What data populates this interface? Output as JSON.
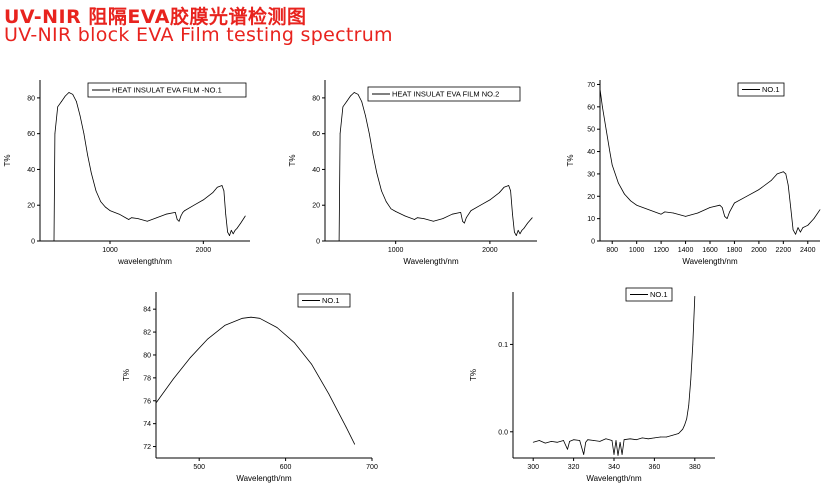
{
  "header": {
    "title_cn": "UV-NIR 阻隔EVA胶膜光谱检测图",
    "title_en": "UV-NIR block EVA Film testing spectrum"
  },
  "colors": {
    "title": "#e8231e",
    "line": "#000000"
  },
  "chart_data": [
    {
      "type": "line",
      "xlabel": "wavelength/nm",
      "ylabel": "T%",
      "xlim": [
        250,
        2500
      ],
      "ylim": [
        0,
        90
      ],
      "xticks": [
        1000,
        2000
      ],
      "yticks": [
        0,
        20,
        40,
        60,
        80
      ],
      "legend_placement": "top-right",
      "series": [
        {
          "name": "HEAT INSULAT EVA FILM -NO.1",
          "x": [
            400,
            410,
            440,
            480,
            520,
            560,
            600,
            640,
            680,
            720,
            760,
            800,
            850,
            900,
            950,
            1000,
            1100,
            1200,
            1230,
            1300,
            1400,
            1500,
            1600,
            1700,
            1720,
            1740,
            1760,
            1780,
            1800,
            1900,
            2000,
            2100,
            2150,
            2200,
            2220,
            2240,
            2260,
            2280,
            2300,
            2320,
            2340,
            2360,
            2400,
            2450
          ],
          "values": [
            0,
            60,
            75,
            78,
            81,
            83,
            82,
            78,
            70,
            60,
            48,
            38,
            28,
            22,
            19,
            17,
            15,
            12,
            13,
            12.5,
            11,
            13,
            15,
            16,
            12,
            11,
            14,
            16,
            17,
            20,
            23,
            27,
            30,
            31,
            28,
            15,
            5,
            3,
            6,
            4,
            6,
            7,
            10,
            14
          ]
        }
      ]
    },
    {
      "type": "line",
      "xlabel": "Wavelength/nm",
      "ylabel": "T%",
      "xlim": [
        250,
        2500
      ],
      "ylim": [
        0,
        90
      ],
      "xticks": [
        1000,
        2000
      ],
      "yticks": [
        0,
        20,
        40,
        60,
        80
      ],
      "legend_placement": "top-right",
      "series": [
        {
          "name": "HEAT INSULAT EVA FILM NO.2",
          "x": [
            400,
            410,
            440,
            480,
            520,
            560,
            600,
            640,
            680,
            720,
            760,
            800,
            850,
            900,
            950,
            1000,
            1100,
            1200,
            1230,
            1300,
            1400,
            1500,
            1600,
            1690,
            1710,
            1730,
            1750,
            1800,
            1900,
            2000,
            2100,
            2150,
            2200,
            2220,
            2240,
            2260,
            2280,
            2300,
            2320,
            2340,
            2360,
            2400,
            2450
          ],
          "values": [
            0,
            60,
            75,
            78,
            81,
            83,
            82,
            78,
            70,
            60,
            48,
            38,
            28,
            22,
            18,
            16.5,
            14,
            12,
            13,
            12.5,
            11,
            12.5,
            15,
            16,
            11,
            10,
            13,
            17,
            20,
            23,
            27,
            30,
            31,
            28,
            15,
            5,
            3,
            6,
            4,
            6,
            7,
            10,
            13
          ]
        }
      ]
    },
    {
      "type": "line",
      "xlabel": "Wavelength/nm",
      "ylabel": "T%",
      "xlim": [
        700,
        2500
      ],
      "ylim": [
        0,
        72
      ],
      "xticks": [
        800,
        1000,
        1200,
        1400,
        1600,
        1800,
        2000,
        2200,
        2400
      ],
      "yticks": [
        0,
        10,
        20,
        30,
        40,
        50,
        60,
        70
      ],
      "legend_placement": "top-right",
      "series": [
        {
          "name": "NO.1",
          "x": [
            700,
            720,
            750,
            780,
            800,
            850,
            900,
            950,
            1000,
            1100,
            1200,
            1230,
            1300,
            1400,
            1500,
            1600,
            1680,
            1700,
            1720,
            1740,
            1760,
            1800,
            1900,
            2000,
            2100,
            2150,
            2200,
            2220,
            2240,
            2260,
            2280,
            2300,
            2320,
            2340,
            2360,
            2400,
            2450,
            2500
          ],
          "values": [
            68,
            60,
            50,
            40,
            34,
            26,
            21,
            18,
            16,
            14,
            12,
            13,
            12.5,
            11,
            12.5,
            15,
            16,
            15,
            11,
            10,
            13,
            17,
            20,
            23,
            27,
            30,
            31,
            30,
            25,
            15,
            5,
            3,
            6,
            4,
            6,
            7,
            10,
            14
          ]
        }
      ]
    },
    {
      "type": "line",
      "xlabel": "Wavelength/nm",
      "ylabel": "T%",
      "xlim": [
        450,
        700
      ],
      "ylim": [
        71,
        85.5
      ],
      "xticks": [
        500,
        600,
        700
      ],
      "yticks": [
        72,
        74,
        76,
        78,
        80,
        82,
        84
      ],
      "legend_placement": "top-center",
      "series": [
        {
          "name": "NO.1",
          "x": [
            450,
            470,
            490,
            510,
            530,
            550,
            560,
            570,
            590,
            610,
            630,
            650,
            670,
            680
          ],
          "values": [
            75.8,
            77.9,
            79.8,
            81.4,
            82.6,
            83.2,
            83.3,
            83.2,
            82.4,
            81.1,
            79.2,
            76.6,
            73.7,
            72.2
          ]
        }
      ]
    },
    {
      "type": "line",
      "xlabel": "Wavelength/nm",
      "ylabel": "T%",
      "xlim": [
        290,
        390
      ],
      "ylim": [
        -0.03,
        0.16
      ],
      "xticks": [
        300,
        320,
        340,
        360,
        380
      ],
      "yticks": [
        0.0,
        0.1
      ],
      "ytick_labels": [
        "0.0",
        "0.1"
      ],
      "legend_placement": "top-left",
      "series": [
        {
          "name": "NO.1",
          "x": [
            300,
            303,
            306,
            309,
            312,
            315,
            317,
            318,
            320,
            323,
            325,
            326,
            327,
            330,
            333,
            336,
            339,
            340,
            341,
            342,
            343,
            344,
            345,
            348,
            351,
            354,
            357,
            360,
            363,
            366,
            369,
            372,
            374,
            375,
            376,
            377,
            378,
            379,
            380
          ],
          "values": [
            -0.012,
            -0.01,
            -0.013,
            -0.011,
            -0.012,
            -0.01,
            -0.02,
            -0.011,
            -0.009,
            -0.01,
            -0.026,
            -0.012,
            -0.009,
            -0.01,
            -0.011,
            -0.008,
            -0.01,
            -0.026,
            -0.01,
            -0.027,
            -0.012,
            -0.026,
            -0.009,
            -0.008,
            -0.009,
            -0.007,
            -0.008,
            -0.007,
            -0.006,
            -0.006,
            -0.004,
            -0.002,
            0.003,
            0.008,
            0.015,
            0.03,
            0.06,
            0.1,
            0.155
          ]
        }
      ]
    }
  ]
}
